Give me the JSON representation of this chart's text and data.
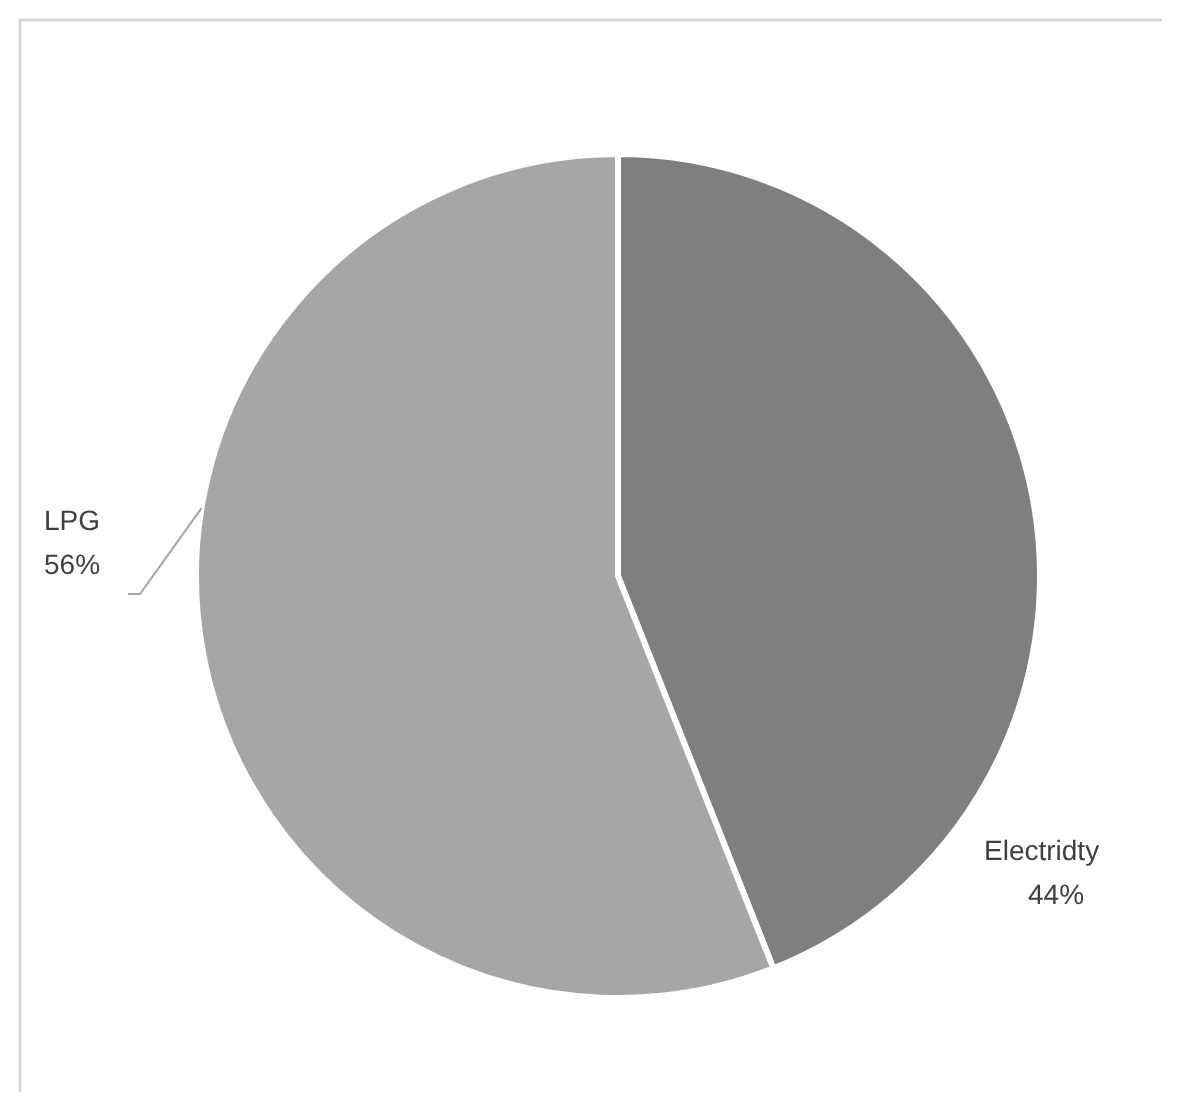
{
  "chart_data": {
    "type": "pie",
    "categories": [
      "Electridty",
      "LPG"
    ],
    "values": [
      44,
      56
    ],
    "colors": [
      "#7f7f7f",
      "#a6a6a6"
    ],
    "value_labels": [
      "44%",
      "56%"
    ]
  }
}
